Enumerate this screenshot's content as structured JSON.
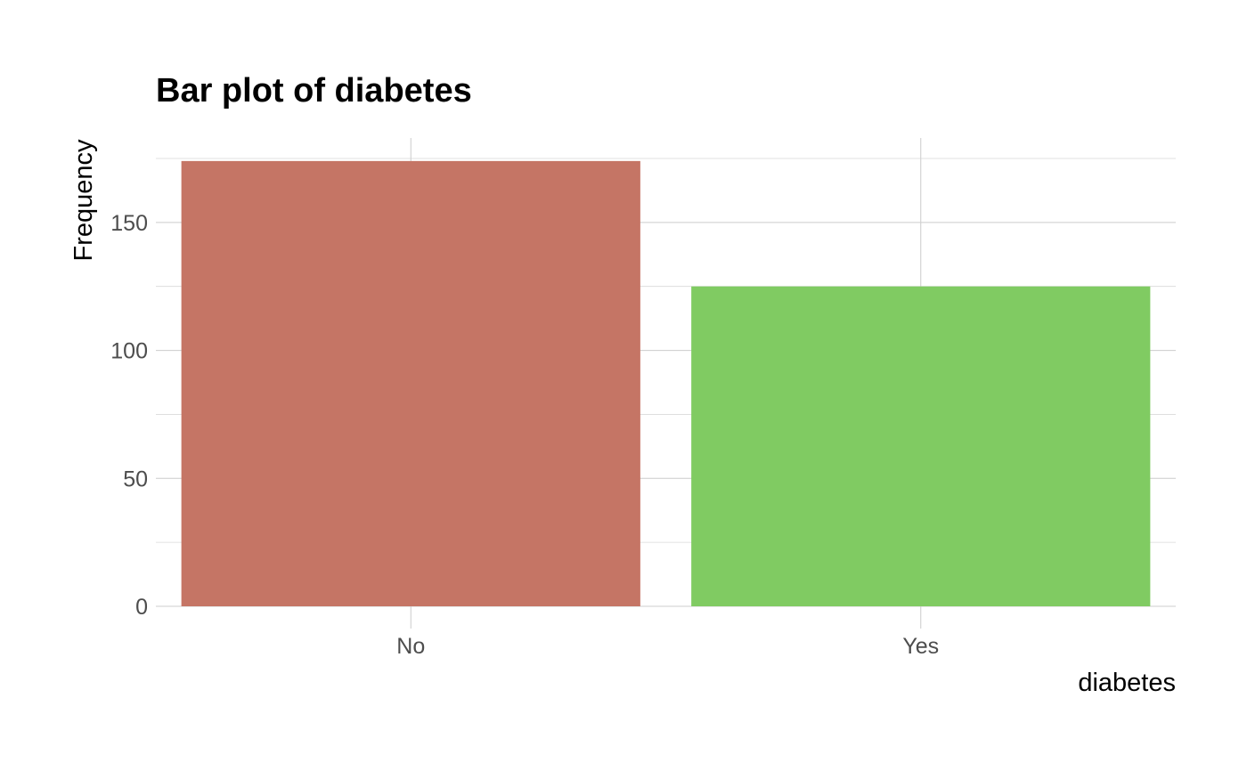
{
  "chart_data": {
    "type": "bar",
    "title": "Bar plot of diabetes",
    "xlabel": "diabetes",
    "ylabel": "Frequency",
    "categories": [
      "No",
      "Yes"
    ],
    "values": [
      174,
      125
    ],
    "colors": [
      "#c57565",
      "#80cb62"
    ],
    "ylim": [
      0,
      183
    ],
    "yticks": [
      0,
      50,
      100,
      150
    ],
    "yticks_minor": [
      25,
      75,
      125,
      175
    ],
    "grid": true,
    "legend": "none"
  }
}
